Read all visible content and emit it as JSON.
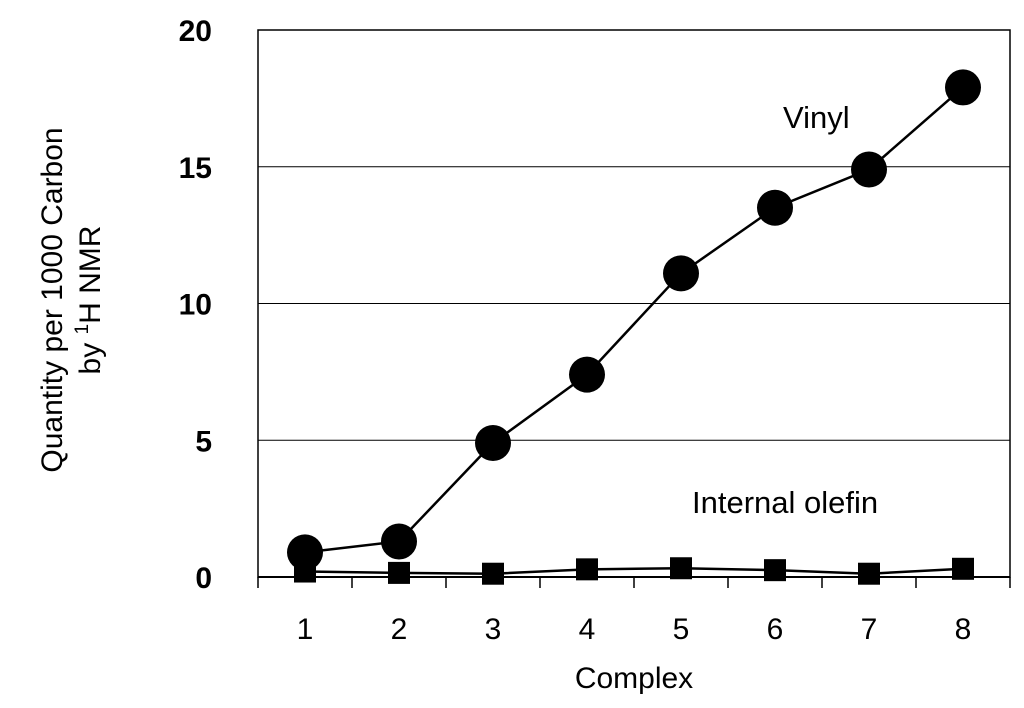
{
  "chart_data": {
    "type": "line",
    "title": "",
    "xlabel": "Complex",
    "ylabel_line1": "Quantity per 1000 Carbon",
    "ylabel_line2_prefix": "by ",
    "ylabel_line2_sup": "1",
    "ylabel_line2_suffix": "H NMR",
    "categories": [
      "1",
      "2",
      "3",
      "4",
      "5",
      "6",
      "7",
      "8"
    ],
    "ylim": [
      0,
      20
    ],
    "yticks": [
      "0",
      "5",
      "10",
      "15",
      "20"
    ],
    "ytick_values": [
      0,
      5,
      10,
      15,
      20
    ],
    "grid": true,
    "series": [
      {
        "name": "Vinyl",
        "marker": "circle",
        "values": [
          0.9,
          1.3,
          4.9,
          7.4,
          11.1,
          13.5,
          14.9,
          17.9
        ]
      },
      {
        "name": "Internal olefin",
        "marker": "square",
        "values": [
          0.2,
          0.15,
          0.12,
          0.28,
          0.32,
          0.25,
          0.12,
          0.3
        ]
      }
    ]
  }
}
